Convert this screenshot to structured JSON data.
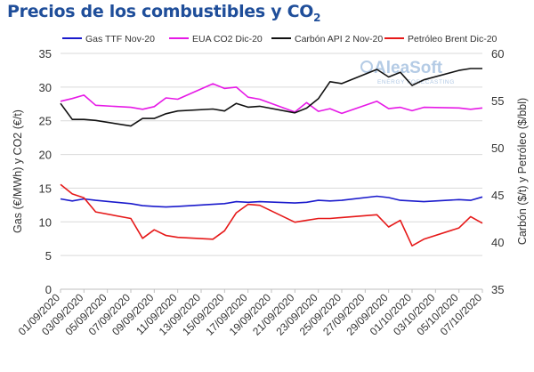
{
  "title_main": "Precios de los combustibles y CO",
  "title_sub": "2",
  "watermark": {
    "brand": "AleaSoft",
    "tagline": "ENERGY FORECASTING"
  },
  "chart_data": {
    "type": "line",
    "ylabel": "Gas (€/MWh) y CO2 (€/t)",
    "y2label": "Carbón ($/t) y Petróleo ($/bbl)",
    "ylim": [
      0,
      35
    ],
    "y2lim": [
      35,
      60
    ],
    "yticks": [
      0,
      5,
      10,
      15,
      20,
      25,
      30,
      35
    ],
    "y2ticks": [
      35,
      40,
      45,
      50,
      55,
      60
    ],
    "grid": true,
    "legend": "top",
    "x": [
      "01/09/2020",
      "02/09/2020",
      "03/09/2020",
      "04/09/2020",
      "07/09/2020",
      "08/09/2020",
      "09/09/2020",
      "10/09/2020",
      "11/09/2020",
      "14/09/2020",
      "15/09/2020",
      "16/09/2020",
      "17/09/2020",
      "18/09/2020",
      "21/09/2020",
      "22/09/2020",
      "23/09/2020",
      "24/09/2020",
      "25/09/2020",
      "28/09/2020",
      "29/09/2020",
      "30/09/2020",
      "01/10/2020",
      "02/10/2020",
      "05/10/2020",
      "06/10/2020",
      "07/10/2020"
    ],
    "xticks": [
      "01/09/2020",
      "03/09/2020",
      "05/09/2020",
      "07/09/2020",
      "09/09/2020",
      "11/09/2020",
      "13/09/2020",
      "15/09/2020",
      "17/09/2020",
      "19/09/2020",
      "21/09/2020",
      "23/09/2020",
      "25/09/2020",
      "27/09/2020",
      "29/09/2020",
      "01/10/2020",
      "03/10/2020",
      "05/10/2020",
      "07/10/2020"
    ],
    "series": [
      {
        "name": "Gas TTF Nov-20",
        "axis": "left",
        "color": "#1a1acc",
        "values": [
          13.4,
          13.1,
          13.4,
          13.2,
          12.7,
          12.4,
          12.3,
          12.2,
          12.3,
          12.6,
          12.7,
          13.0,
          12.9,
          13.0,
          12.8,
          12.9,
          13.2,
          13.1,
          13.2,
          13.8,
          13.6,
          13.2,
          13.1,
          13.0,
          13.3,
          13.2,
          13.7
        ]
      },
      {
        "name": "EUA CO2 Dic-20",
        "axis": "left",
        "color": "#e619e6",
        "values": [
          27.9,
          28.3,
          28.8,
          27.3,
          27.0,
          26.7,
          27.1,
          28.4,
          28.2,
          30.5,
          29.8,
          30.0,
          28.5,
          28.2,
          26.3,
          27.7,
          26.4,
          26.8,
          26.1,
          27.9,
          26.8,
          27.0,
          26.5,
          27.0,
          26.9,
          26.7,
          26.9
        ]
      },
      {
        "name": "Carbón API 2 Nov-20",
        "axis": "right",
        "color": "#111111",
        "values": [
          54.7,
          53.0,
          53.0,
          52.9,
          52.3,
          53.1,
          53.1,
          53.6,
          53.9,
          54.1,
          53.9,
          54.7,
          54.3,
          54.4,
          53.7,
          54.2,
          55.2,
          57.0,
          56.8,
          58.3,
          57.5,
          58.0,
          56.6,
          57.2,
          58.2,
          58.4,
          58.4
        ]
      },
      {
        "name": "Petróleo Brent Dic-20",
        "axis": "right",
        "color": "#e61919",
        "values": [
          46.1,
          45.1,
          44.7,
          43.2,
          42.5,
          40.4,
          41.3,
          40.7,
          40.5,
          40.3,
          41.2,
          43.1,
          44.0,
          43.9,
          42.1,
          42.3,
          42.5,
          42.5,
          42.6,
          42.9,
          41.6,
          42.3,
          39.6,
          40.3,
          41.5,
          42.7,
          42.0
        ]
      }
    ]
  }
}
